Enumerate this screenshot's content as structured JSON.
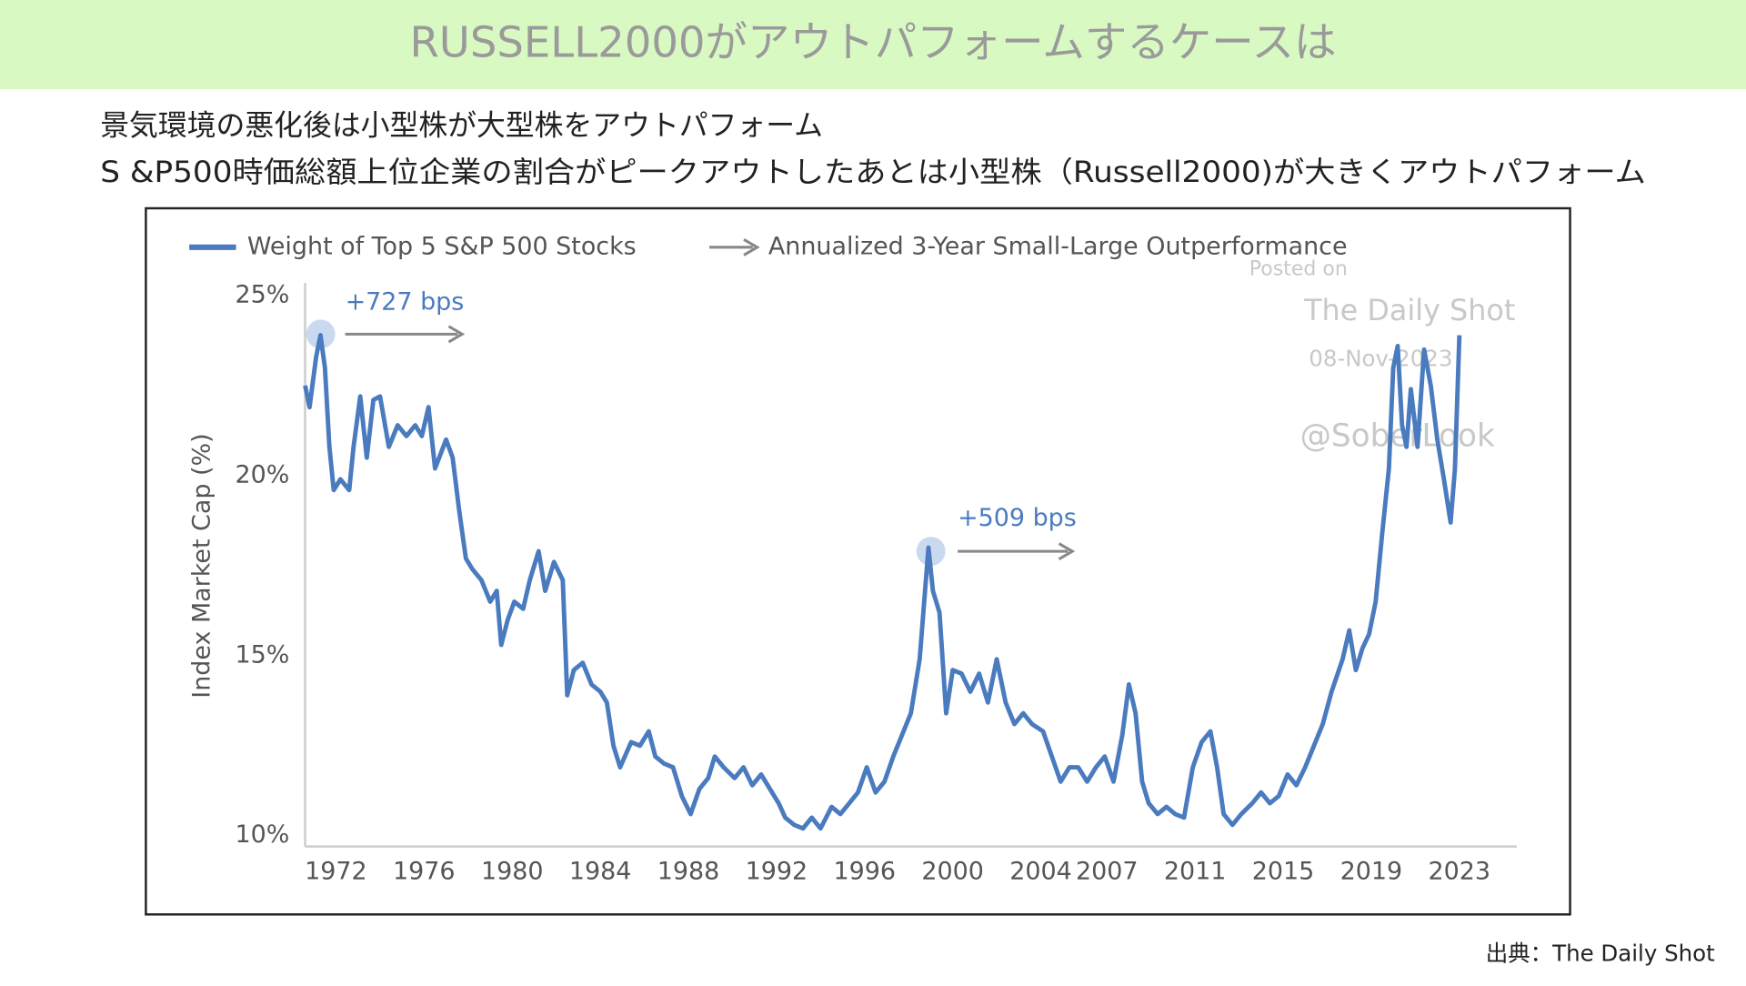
{
  "slide": {
    "title": "RUSSELL2000がアウトパフォームするケースは",
    "subtitles": [
      "景気環境の悪化後は小型株が大型株をアウトパフォーム",
      "S &P500時価総額上位企業の割合がピークアウトしたあとは小型株（Russell2000)が大きくアウトパフォーム"
    ],
    "source": "出典：The Daily Shot"
  },
  "chart_data": {
    "type": "line",
    "y_label": "Index Market Cap (%)",
    "arrow_legend": "Annualized 3-Year Small-Large Outperformance",
    "annotations": [
      "+727 bps",
      "+509 bps"
    ],
    "watermark": [
      "Posted on",
      "The Daily Shot",
      "08-Nov-2023",
      "@SoberLook"
    ],
    "x": [
      1970.6,
      1970.8,
      1971.1,
      1971.3,
      1971.5,
      1971.7,
      1971.9,
      1972.2,
      1972.6,
      1972.8,
      1973.1,
      1973.4,
      1973.7,
      1974.0,
      1974.4,
      1974.8,
      1975.2,
      1975.6,
      1975.9,
      1976.2,
      1976.5,
      1977.0,
      1977.3,
      1977.6,
      1977.9,
      1978.2,
      1978.6,
      1979.0,
      1979.3,
      1979.5,
      1979.8,
      1980.1,
      1980.5,
      1980.8,
      1981.2,
      1981.5,
      1981.9,
      1982.3,
      1982.5,
      1982.8,
      1983.2,
      1983.6,
      1984.0,
      1984.3,
      1984.6,
      1984.9,
      1985.4,
      1985.8,
      1986.2,
      1986.5,
      1986.9,
      1987.3,
      1987.7,
      1988.1,
      1988.5,
      1988.9,
      1989.2,
      1989.6,
      1990.1,
      1990.5,
      1990.9,
      1991.3,
      1991.7,
      1992.1,
      1992.4,
      1992.8,
      1993.2,
      1993.6,
      1994.0,
      1994.5,
      1994.9,
      1995.3,
      1995.7,
      1996.1,
      1996.5,
      1996.9,
      1997.3,
      1997.7,
      1998.1,
      1998.5,
      1998.9,
      1999.1,
      1999.4,
      1999.7,
      2000.0,
      2000.4,
      2000.8,
      2001.2,
      2001.6,
      2002.0,
      2002.4,
      2002.8,
      2003.2,
      2003.6,
      2004.1,
      2004.5,
      2004.9,
      2005.3,
      2005.7,
      2006.1,
      2006.5,
      2006.9,
      2007.3,
      2007.7,
      2008.0,
      2008.3,
      2008.6,
      2008.9,
      2009.3,
      2009.7,
      2010.1,
      2010.5,
      2010.9,
      2011.3,
      2011.7,
      2012.0,
      2012.3,
      2012.7,
      2013.1,
      2013.6,
      2014.0,
      2014.4,
      2014.8,
      2015.2,
      2015.6,
      2016.0,
      2016.4,
      2016.8,
      2017.2,
      2017.7,
      2018.0,
      2018.3,
      2018.6,
      2018.9,
      2019.2,
      2019.5,
      2019.8,
      2020.0,
      2020.2,
      2020.4,
      2020.6,
      2020.8,
      2021.1,
      2021.4,
      2021.7,
      2022.0,
      2022.3,
      2022.6,
      2022.8,
      2023.0
    ],
    "series": [
      {
        "name": "Weight of Top 5 S&P 500 Stocks",
        "color": "#4a7bbf",
        "values": [
          22.5,
          21.9,
          23.3,
          23.9,
          23.0,
          20.8,
          19.6,
          19.9,
          19.6,
          20.8,
          22.2,
          20.5,
          22.1,
          22.2,
          20.8,
          21.4,
          21.1,
          21.4,
          21.1,
          21.9,
          20.2,
          21.0,
          20.5,
          19.0,
          17.7,
          17.4,
          17.1,
          16.5,
          16.8,
          15.3,
          16.0,
          16.5,
          16.3,
          17.1,
          17.9,
          16.8,
          17.6,
          17.1,
          13.9,
          14.6,
          14.8,
          14.2,
          14.0,
          13.7,
          12.5,
          11.9,
          12.6,
          12.5,
          12.9,
          12.2,
          12.0,
          11.9,
          11.1,
          10.6,
          11.3,
          11.6,
          12.2,
          11.9,
          11.6,
          11.9,
          11.4,
          11.7,
          11.3,
          10.9,
          10.5,
          10.3,
          10.2,
          10.5,
          10.2,
          10.8,
          10.6,
          10.9,
          11.2,
          11.9,
          11.2,
          11.5,
          12.2,
          12.8,
          13.4,
          14.9,
          18.0,
          16.8,
          16.2,
          13.4,
          14.6,
          14.5,
          14.0,
          14.5,
          13.7,
          14.9,
          13.7,
          13.1,
          13.4,
          13.1,
          12.9,
          12.2,
          11.5,
          11.9,
          11.9,
          11.5,
          11.9,
          12.2,
          11.5,
          12.8,
          14.2,
          13.4,
          11.5,
          10.9,
          10.6,
          10.8,
          10.6,
          10.5,
          11.9,
          12.6,
          12.9,
          11.9,
          10.6,
          10.3,
          10.6,
          10.9,
          11.2,
          10.9,
          11.1,
          11.7,
          11.4,
          11.9,
          12.5,
          13.1,
          14.0,
          14.9,
          15.7,
          14.6,
          15.2,
          15.6,
          16.5,
          18.4,
          20.2,
          23.0,
          23.6,
          21.4,
          20.8,
          22.4,
          20.8,
          23.5,
          22.5,
          21.0,
          19.9,
          18.7,
          20.2,
          23.9
        ]
      }
    ],
    "xlim": [
      1970.6,
      2025.6
    ],
    "xticks": [
      1972,
      1976,
      1980,
      1984,
      1988,
      1992,
      1996,
      2000,
      2004,
      2007,
      2011,
      2015,
      2019,
      2023
    ],
    "ylim": [
      9.7,
      25.6
    ],
    "yticks": [
      {
        "value": 10,
        "label": "10%"
      },
      {
        "value": 15,
        "label": "15%"
      },
      {
        "value": 20,
        "label": "20%"
      },
      {
        "value": 25,
        "label": "25%"
      }
    ],
    "grid": false
  }
}
